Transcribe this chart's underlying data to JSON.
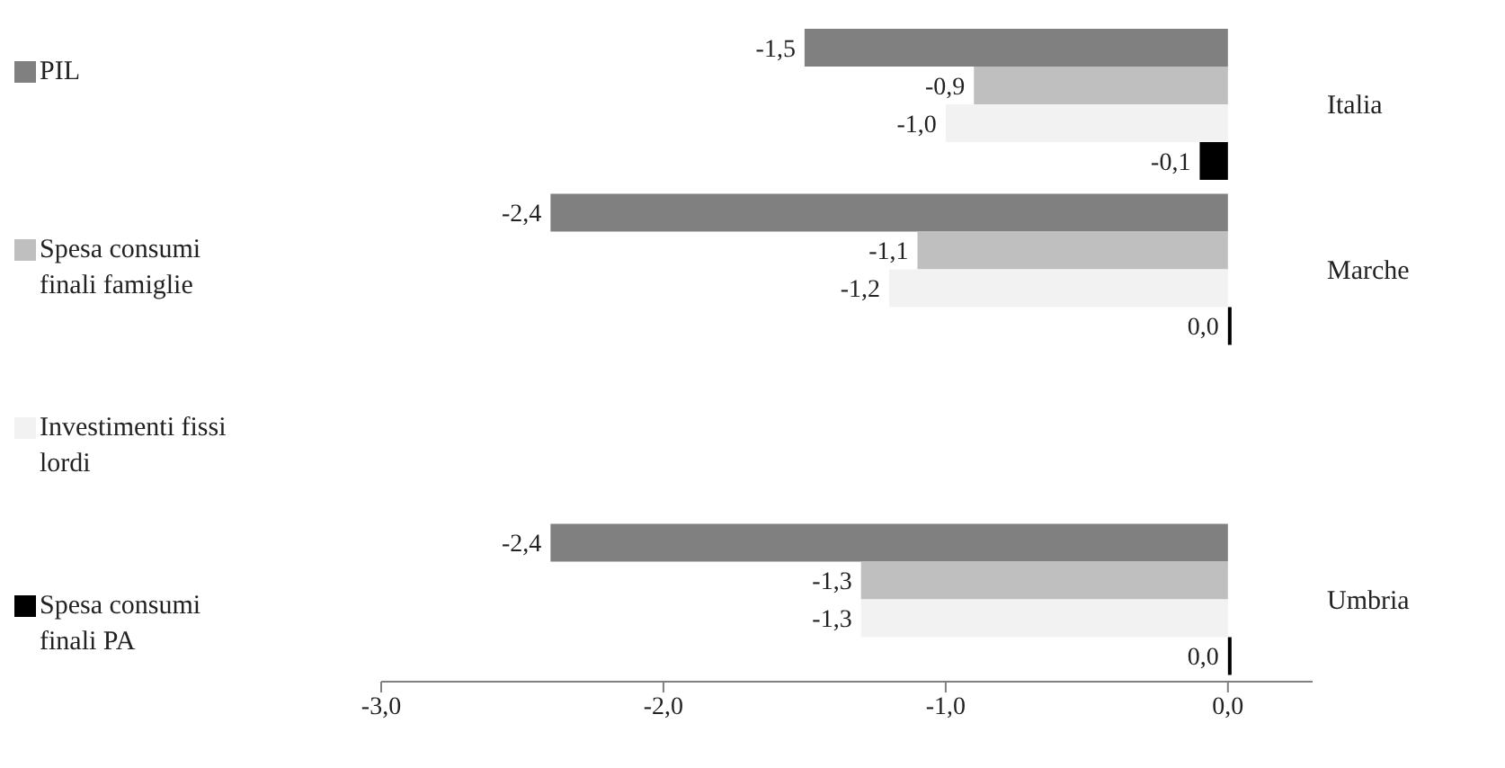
{
  "chart_data": {
    "type": "bar",
    "orientation": "horizontal",
    "categories": [
      "Italia",
      "Marche",
      null,
      "Umbria"
    ],
    "series": [
      {
        "name": "PIL",
        "color": "#808080",
        "values": [
          -1.5,
          -2.4,
          null,
          -2.4
        ],
        "value_labels": [
          "-1,5",
          "-2,4",
          null,
          "-2,4"
        ]
      },
      {
        "name": "Spesa consumi finali famiglie",
        "color": "#bfbfbf",
        "values": [
          -0.9,
          -1.1,
          null,
          -1.3
        ],
        "value_labels": [
          "-0,9",
          "-1,1",
          null,
          "-1,3"
        ]
      },
      {
        "name": "Investimenti fissi lordi",
        "color": "#f2f2f2",
        "values": [
          -1.0,
          -1.2,
          null,
          -1.3
        ],
        "value_labels": [
          "-1,0",
          "-1,2",
          null,
          "-1,3"
        ]
      },
      {
        "name": "Spesa consumi finali PA",
        "color": "#000000",
        "values": [
          -0.1,
          0.0,
          null,
          0.0
        ],
        "value_labels": [
          "-0,1",
          "0,0",
          null,
          "0,0"
        ]
      }
    ],
    "xlim": [
      -3.0,
      0.3
    ],
    "xticks": [
      {
        "value": -3,
        "label": "-3,0"
      },
      {
        "value": -2,
        "label": "-2,0"
      },
      {
        "value": -1,
        "label": "-1,0"
      },
      {
        "value": 0,
        "label": "0,0"
      }
    ],
    "grid": false,
    "legend": "left"
  }
}
